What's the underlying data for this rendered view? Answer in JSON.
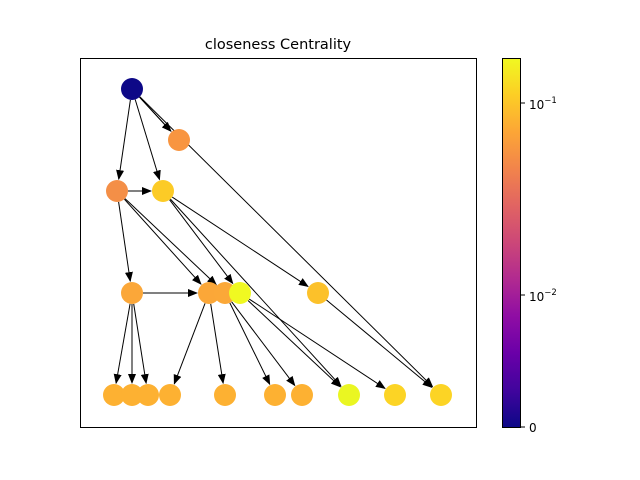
{
  "title": "closeness Centrality",
  "colorbar": {
    "colormap": "plasma",
    "scale": "log",
    "ticks": [
      {
        "value": 0,
        "base": "0",
        "exponent": ""
      },
      {
        "value": 0.01,
        "base": "10",
        "exponent": "−2"
      },
      {
        "value": 0.1,
        "base": "10",
        "exponent": "−1"
      }
    ]
  },
  "graph": {
    "nodes": [
      {
        "id": "n0",
        "color": "#0d0887"
      },
      {
        "id": "n1",
        "color": "#f89540"
      },
      {
        "id": "n2",
        "color": "#f48f47"
      },
      {
        "id": "n3",
        "color": "#fccb26"
      },
      {
        "id": "n4",
        "color": "#fba739"
      },
      {
        "id": "n5",
        "color": "#fba738"
      },
      {
        "id": "n6",
        "color": "#fba838"
      },
      {
        "id": "n7",
        "color": "#f0f921"
      },
      {
        "id": "n8",
        "color": "#fcc12a"
      },
      {
        "id": "n9",
        "color": "#fdb132"
      },
      {
        "id": "n10",
        "color": "#fdb132"
      },
      {
        "id": "n11",
        "color": "#fdb132"
      },
      {
        "id": "n12",
        "color": "#fdb132"
      },
      {
        "id": "n13",
        "color": "#fdb132"
      },
      {
        "id": "n14",
        "color": "#fdb132"
      },
      {
        "id": "n15",
        "color": "#fdb132"
      },
      {
        "id": "n16",
        "color": "#eaf622"
      },
      {
        "id": "n17",
        "color": "#fcd425"
      },
      {
        "id": "n18",
        "color": "#fcd425"
      }
    ],
    "edges": [
      [
        "n0",
        "n1"
      ],
      [
        "n0",
        "n1"
      ],
      [
        "n0",
        "n2"
      ],
      [
        "n0",
        "n3"
      ],
      [
        "n0",
        "n18"
      ],
      [
        "n2",
        "n3"
      ],
      [
        "n2",
        "n4"
      ],
      [
        "n2",
        "n5"
      ],
      [
        "n2",
        "n6"
      ],
      [
        "n3",
        "n7"
      ],
      [
        "n3",
        "n8"
      ],
      [
        "n3",
        "n16"
      ],
      [
        "n4",
        "n9"
      ],
      [
        "n4",
        "n10"
      ],
      [
        "n4",
        "n11"
      ],
      [
        "n4",
        "n5"
      ],
      [
        "n5",
        "n12"
      ],
      [
        "n5",
        "n13"
      ],
      [
        "n6",
        "n14"
      ],
      [
        "n6",
        "n15"
      ],
      [
        "n7",
        "n16"
      ],
      [
        "n7",
        "n17"
      ],
      [
        "n8",
        "n18"
      ]
    ]
  }
}
